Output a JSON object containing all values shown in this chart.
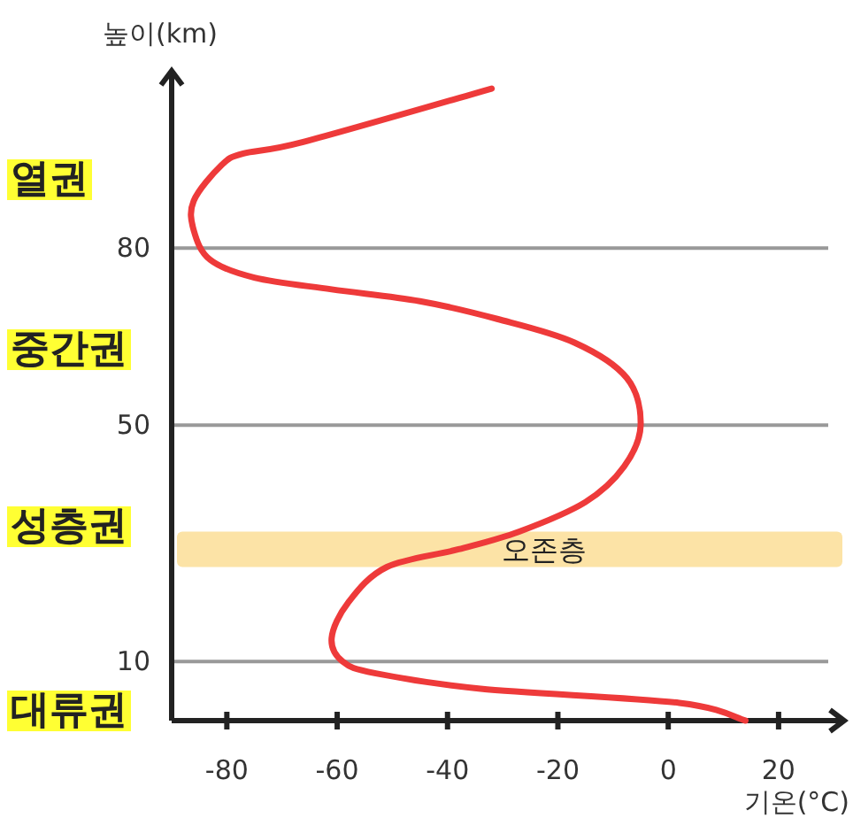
{
  "chart_data": {
    "type": "line",
    "xlabel": "기온(°C)",
    "ylabel": "높이(km)",
    "xlim": [
      -90,
      29
    ],
    "ylim": [
      0,
      110
    ],
    "xticks": [
      -80,
      -60,
      -40,
      -20,
      0,
      20
    ],
    "yticks": [
      10,
      50,
      80
    ],
    "grid": "y",
    "series": [
      {
        "color": "#ee3a3a",
        "x": [
          14,
          2,
          -34,
          -53,
          -59,
          -61,
          -58,
          -51,
          -38,
          -27,
          -15,
          -8,
          -5,
          -7.5,
          -17,
          -31,
          -45,
          -61,
          -75,
          -83,
          -86,
          -86,
          -81,
          -77,
          -66,
          -32
        ],
        "values": [
          0,
          3,
          5.4,
          8,
          10,
          14,
          20,
          26,
          29,
          32,
          37,
          43,
          50,
          58,
          64,
          68,
          71,
          73,
          75,
          78,
          83,
          88,
          94,
          96,
          98,
          107
        ]
      }
    ],
    "bands": [
      {
        "axis": "y",
        "from": 26,
        "to": 32,
        "label": "오존층",
        "color": "#fce3a6"
      }
    ],
    "annotations": [
      "열권",
      "중간권",
      "성층권",
      "대류권"
    ]
  }
}
